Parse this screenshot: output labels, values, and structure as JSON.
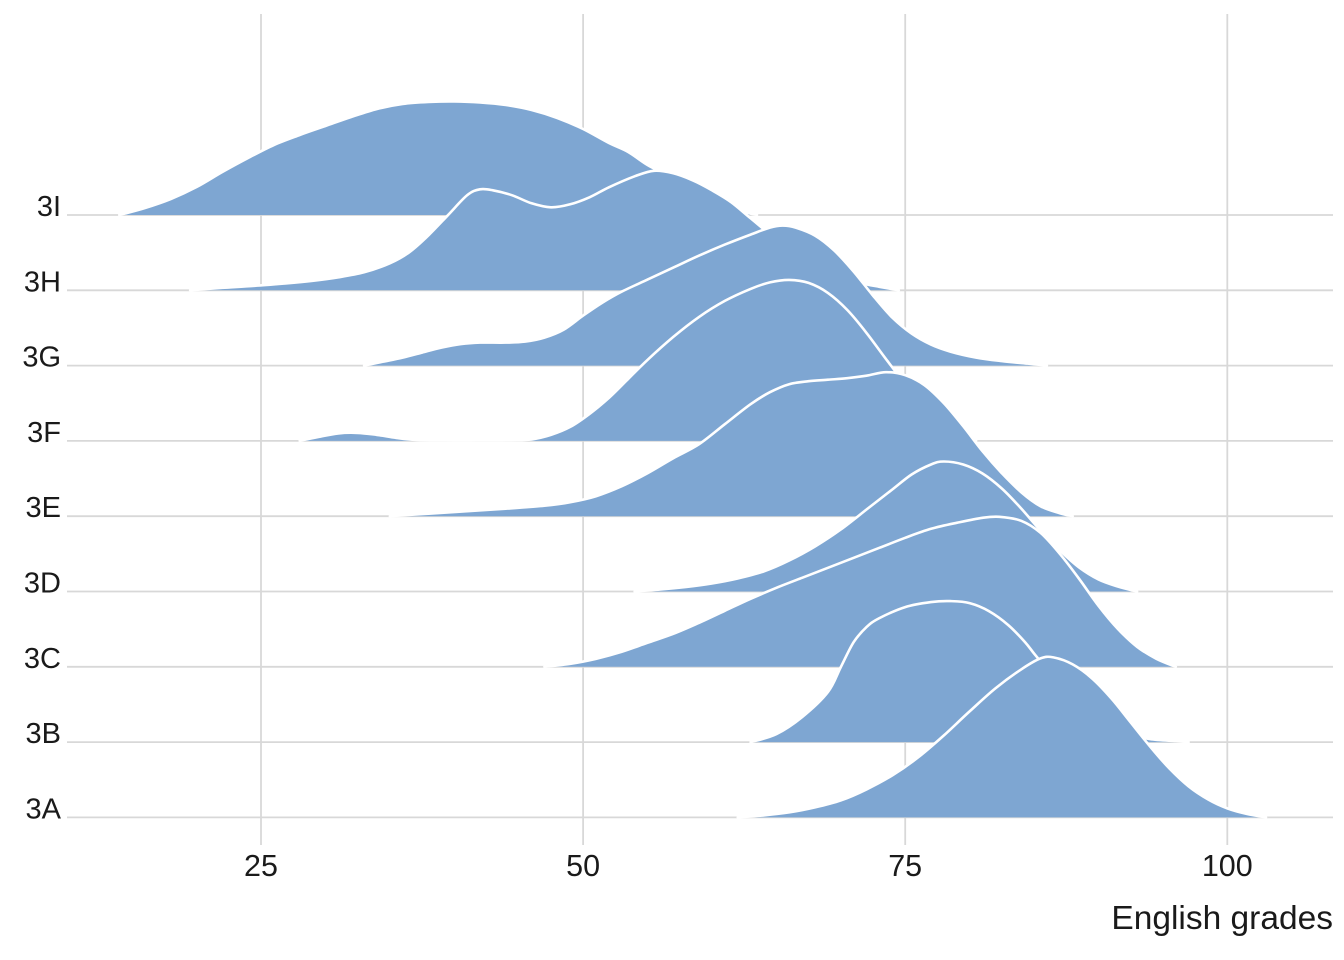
{
  "chart_data": {
    "type": "area",
    "subtype": "ridgeline-joyplot",
    "title": "",
    "xlabel": "English grades",
    "ylabel": "",
    "x_ticks": [
      25,
      50,
      75,
      100
    ],
    "x_axis_range_shown": [
      10.2,
      108
    ],
    "grid": "light gray: vertical lines at each x tick, horizontal line at each class baseline",
    "legend_position": "none",
    "categories_top_to_bottom": [
      "3I",
      "3H",
      "3G",
      "3F",
      "3E",
      "3D",
      "3C",
      "3B",
      "3A"
    ],
    "height_units": "pixels of density height; 75.3 px equals the spacing of one class row (curves overlap rows above)",
    "series": [
      {
        "name": "3I",
        "points": [
          [
            14,
            0
          ],
          [
            16,
            7
          ],
          [
            18,
            16
          ],
          [
            20,
            28
          ],
          [
            22,
            43
          ],
          [
            24,
            57
          ],
          [
            26,
            70
          ],
          [
            28,
            80
          ],
          [
            30,
            89
          ],
          [
            32,
            98
          ],
          [
            34,
            106
          ],
          [
            36,
            111
          ],
          [
            38,
            113
          ],
          [
            40,
            113.5
          ],
          [
            42,
            112.5
          ],
          [
            44,
            110
          ],
          [
            46,
            105
          ],
          [
            48,
            97
          ],
          [
            50,
            86
          ],
          [
            52,
            72
          ],
          [
            53.5,
            63
          ],
          [
            55,
            50
          ],
          [
            56.5,
            40
          ],
          [
            58,
            29
          ],
          [
            59.5,
            19
          ],
          [
            61,
            10
          ],
          [
            62.5,
            3
          ],
          [
            63.5,
            0
          ]
        ]
      },
      {
        "name": "3H",
        "points": [
          [
            19.5,
            0
          ],
          [
            22,
            2.5
          ],
          [
            24.5,
            4.5
          ],
          [
            27,
            7
          ],
          [
            29,
            9.5
          ],
          [
            31,
            13
          ],
          [
            33,
            18
          ],
          [
            35,
            27
          ],
          [
            36.5,
            38
          ],
          [
            38,
            55
          ],
          [
            39.5,
            75
          ],
          [
            41,
            95
          ],
          [
            42,
            101
          ],
          [
            43,
            100
          ],
          [
            44.5,
            95
          ],
          [
            46,
            87
          ],
          [
            47.5,
            83
          ],
          [
            49,
            86
          ],
          [
            50.5,
            93
          ],
          [
            52,
            103
          ],
          [
            54,
            114
          ],
          [
            55.5,
            119.5
          ],
          [
            57,
            117
          ],
          [
            58.5,
            110
          ],
          [
            60,
            100
          ],
          [
            61.5,
            88
          ],
          [
            63,
            72
          ],
          [
            64.5,
            56
          ],
          [
            66,
            41
          ],
          [
            67.5,
            29
          ],
          [
            69,
            18
          ],
          [
            70.5,
            11
          ],
          [
            72,
            6
          ],
          [
            73,
            3.5
          ],
          [
            74.5,
            0
          ]
        ]
      },
      {
        "name": "3G",
        "points": [
          [
            33,
            0
          ],
          [
            34.5,
            4
          ],
          [
            36,
            8
          ],
          [
            37.5,
            13
          ],
          [
            39,
            18
          ],
          [
            40.5,
            21.5
          ],
          [
            42,
            23
          ],
          [
            44,
            23
          ],
          [
            45.5,
            24
          ],
          [
            47,
            28
          ],
          [
            48.5,
            36
          ],
          [
            50,
            50
          ],
          [
            51.5,
            63
          ],
          [
            53,
            74
          ],
          [
            55,
            86
          ],
          [
            57,
            98
          ],
          [
            59,
            110
          ],
          [
            61,
            121
          ],
          [
            63,
            131
          ],
          [
            64.5,
            138
          ],
          [
            65.5,
            140
          ],
          [
            66.5,
            138
          ],
          [
            68,
            130
          ],
          [
            69.5,
            115
          ],
          [
            71,
            94
          ],
          [
            72.5,
            70
          ],
          [
            74,
            48
          ],
          [
            75.5,
            32
          ],
          [
            77,
            21
          ],
          [
            78.5,
            14
          ],
          [
            80.5,
            8
          ],
          [
            82.5,
            4.5
          ],
          [
            84.5,
            2
          ],
          [
            86,
            0
          ]
        ]
      },
      {
        "name": "3F",
        "points": [
          [
            28,
            0
          ],
          [
            29.5,
            4
          ],
          [
            31,
            7.5
          ],
          [
            32.5,
            8
          ],
          [
            34,
            6
          ],
          [
            35.5,
            3
          ],
          [
            37,
            1
          ],
          [
            39,
            0.4
          ],
          [
            42,
            0.4
          ],
          [
            44.5,
            0.6
          ],
          [
            46,
            1.5
          ],
          [
            47.5,
            6
          ],
          [
            49,
            14
          ],
          [
            50.5,
            27
          ],
          [
            52,
            43
          ],
          [
            53.5,
            62
          ],
          [
            55,
            81
          ],
          [
            57,
            104
          ],
          [
            59,
            124
          ],
          [
            61,
            140
          ],
          [
            63,
            152
          ],
          [
            64.5,
            158.5
          ],
          [
            66,
            161
          ],
          [
            67.5,
            158
          ],
          [
            69,
            148
          ],
          [
            70.5,
            131
          ],
          [
            72,
            108
          ],
          [
            73.5,
            82
          ],
          [
            75,
            57
          ],
          [
            76.5,
            35
          ],
          [
            78,
            16
          ],
          [
            79.5,
            5
          ],
          [
            80.5,
            0
          ]
        ]
      },
      {
        "name": "3E",
        "points": [
          [
            35,
            0
          ],
          [
            38,
            2.5
          ],
          [
            41,
            5
          ],
          [
            44,
            7.5
          ],
          [
            47,
            10.5
          ],
          [
            49,
            14
          ],
          [
            51,
            20
          ],
          [
            53,
            30
          ],
          [
            55,
            43
          ],
          [
            57,
            58
          ],
          [
            59,
            72
          ],
          [
            61,
            92
          ],
          [
            63,
            112
          ],
          [
            64.5,
            124
          ],
          [
            66,
            132
          ],
          [
            67.5,
            135
          ],
          [
            69,
            136.5
          ],
          [
            70.5,
            138
          ],
          [
            72,
            140.5
          ],
          [
            73.5,
            144
          ],
          [
            75,
            141
          ],
          [
            76.5,
            131
          ],
          [
            78,
            113
          ],
          [
            79.5,
            90
          ],
          [
            81,
            65
          ],
          [
            82.5,
            43
          ],
          [
            84,
            24
          ],
          [
            85.5,
            10
          ],
          [
            87,
            3
          ],
          [
            88,
            0
          ]
        ]
      },
      {
        "name": "3D",
        "points": [
          [
            54,
            0
          ],
          [
            56,
            2
          ],
          [
            58,
            4.5
          ],
          [
            60,
            8
          ],
          [
            62,
            13
          ],
          [
            64,
            20
          ],
          [
            66,
            31
          ],
          [
            68,
            45
          ],
          [
            70,
            62
          ],
          [
            72,
            82
          ],
          [
            74,
            102
          ],
          [
            75.5,
            117
          ],
          [
            77,
            127
          ],
          [
            78,
            130
          ],
          [
            79.5,
            127
          ],
          [
            81,
            118
          ],
          [
            82.5,
            103
          ],
          [
            84,
            83
          ],
          [
            85.5,
            61
          ],
          [
            87,
            41
          ],
          [
            88.5,
            24
          ],
          [
            90,
            12
          ],
          [
            91.5,
            5
          ],
          [
            93,
            0
          ]
        ]
      },
      {
        "name": "3C",
        "points": [
          [
            47,
            0
          ],
          [
            49,
            3
          ],
          [
            51,
            8
          ],
          [
            53,
            15
          ],
          [
            55,
            24
          ],
          [
            57,
            33
          ],
          [
            59,
            44
          ],
          [
            61,
            56
          ],
          [
            63,
            68
          ],
          [
            65,
            79
          ],
          [
            67,
            89
          ],
          [
            69,
            99
          ],
          [
            71,
            109
          ],
          [
            73,
            119
          ],
          [
            75,
            129
          ],
          [
            77,
            138
          ],
          [
            79,
            144
          ],
          [
            81,
            149
          ],
          [
            82.3,
            150
          ],
          [
            84,
            146
          ],
          [
            85.5,
            134
          ],
          [
            87,
            113
          ],
          [
            88.5,
            88
          ],
          [
            90,
            61
          ],
          [
            91.5,
            38
          ],
          [
            93,
            20
          ],
          [
            94.5,
            8
          ],
          [
            96,
            0
          ]
        ]
      },
      {
        "name": "3B",
        "points": [
          [
            63,
            0
          ],
          [
            65,
            8
          ],
          [
            67,
            25
          ],
          [
            69,
            50
          ],
          [
            70,
            75
          ],
          [
            71,
            100
          ],
          [
            72,
            115
          ],
          [
            73,
            124
          ],
          [
            75,
            135
          ],
          [
            77,
            140
          ],
          [
            78.5,
            141
          ],
          [
            80,
            139
          ],
          [
            81.5,
            131
          ],
          [
            83,
            117
          ],
          [
            84.3,
            100
          ],
          [
            85.1,
            87
          ],
          [
            86.5,
            66
          ],
          [
            88,
            47
          ],
          [
            89.5,
            31
          ],
          [
            91,
            18
          ],
          [
            92.5,
            8
          ],
          [
            94,
            3
          ],
          [
            96,
            1
          ],
          [
            97,
            0
          ]
        ]
      },
      {
        "name": "3A",
        "points": [
          [
            62,
            0
          ],
          [
            64,
            2
          ],
          [
            66,
            5
          ],
          [
            68,
            10
          ],
          [
            70,
            17
          ],
          [
            72,
            28
          ],
          [
            74,
            42
          ],
          [
            76,
            60
          ],
          [
            78,
            82
          ],
          [
            80,
            106
          ],
          [
            82,
            129
          ],
          [
            84,
            148
          ],
          [
            85.5,
            159
          ],
          [
            86.5,
            160
          ],
          [
            88,
            153
          ],
          [
            89.5,
            139
          ],
          [
            91,
            119
          ],
          [
            92.5,
            95
          ],
          [
            94,
            71
          ],
          [
            95.5,
            49
          ],
          [
            97,
            31
          ],
          [
            98.5,
            18
          ],
          [
            100,
            9
          ],
          [
            101.5,
            3.5
          ],
          [
            103,
            0
          ]
        ]
      }
    ],
    "colors": {
      "ridge_fill": "#7EA6D2",
      "ridge_outline": "#FFFFFF",
      "gridline": "#D8D8D8",
      "axis_text": "#1A1A1A",
      "background": "#FFFFFF"
    }
  }
}
